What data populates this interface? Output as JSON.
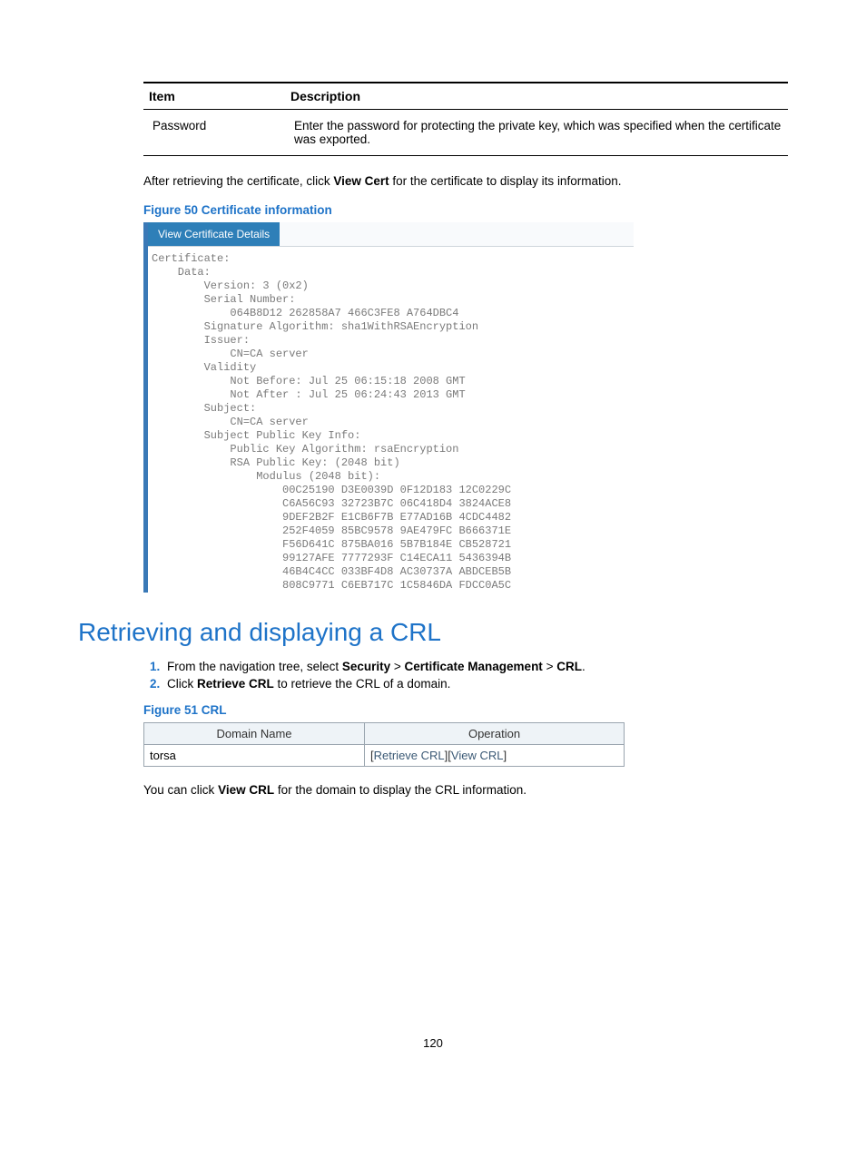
{
  "desc_table": {
    "header_item": "Item",
    "header_desc": "Description",
    "row_item": "Password",
    "row_desc": "Enter the password for protecting the private key, which was specified when the certificate was exported."
  },
  "after_para_pre": "After retrieving the certificate, click ",
  "after_para_bold": "View Cert",
  "after_para_post": " for the certificate to display its information.",
  "fig50_caption": "Figure 50 Certificate information",
  "cert_tab": "View Certificate Details",
  "cert_body": "Certificate:\n    Data:\n        Version: 3 (0x2)\n        Serial Number:\n            064B8D12 262858A7 466C3FE8 A764DBC4\n        Signature Algorithm: sha1WithRSAEncryption\n        Issuer:\n            CN=CA server\n        Validity\n            Not Before: Jul 25 06:15:18 2008 GMT\n            Not After : Jul 25 06:24:43 2013 GMT\n        Subject:\n            CN=CA server\n        Subject Public Key Info:\n            Public Key Algorithm: rsaEncryption\n            RSA Public Key: (2048 bit)\n                Modulus (2048 bit):\n                    00C25190 D3E0039D 0F12D183 12C0229C\n                    C6A56C93 32723B7C 06C418D4 3824ACE8\n                    9DEF2B2F E1CB6F7B E77AD16B 4CDC4482\n                    252F4059 85BC9578 9AE479FC B666371E\n                    F56D641C 875BA016 5B7B184E CB528721\n                    99127AFE 7777293F C14ECA11 5436394B\n                    46B4C4CC 033BF4D8 AC30737A ABDCEB5B\n                    808C9771 C6EB717C 1C5846DA FDCC0A5C",
  "section_heading": "Retrieving and displaying a CRL",
  "step1_pre": "From the navigation tree, select ",
  "step1_b1": "Security",
  "step1_sep1": " > ",
  "step1_b2": "Certificate Management",
  "step1_sep2": " > ",
  "step1_b3": "CRL",
  "step1_post": ".",
  "step2_pre": "Click ",
  "step2_b": "Retrieve CRL",
  "step2_post": " to retrieve the CRL of a domain.",
  "fig51_caption": "Figure 51 CRL",
  "crl_table": {
    "header_domain": "Domain Name",
    "header_op": "Operation",
    "row_domain": "torsa",
    "op_retrieve": "Retrieve CRL",
    "op_view": "View CRL"
  },
  "crl_para_pre": "You can click ",
  "crl_para_b": "View CRL",
  "crl_para_post": " for the domain to display the CRL information.",
  "page_number": "120"
}
